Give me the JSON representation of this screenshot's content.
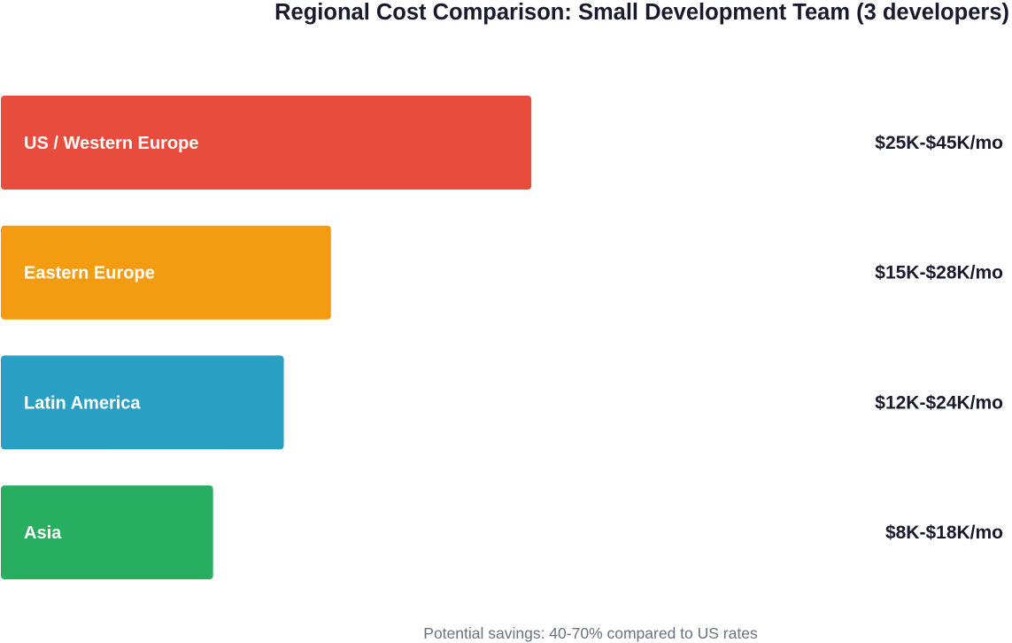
{
  "chart_data": {
    "type": "bar",
    "orientation": "horizontal",
    "title": "Regional Cost Comparison: Small Development Team (3 developers)",
    "xlabel": "",
    "ylabel": "",
    "xlim": [
      0,
      70
    ],
    "grid": false,
    "legend": "none",
    "unit": "$K per month",
    "categories": [
      "US / Western Europe",
      "Eastern Europe",
      "Latin America",
      "Asia"
    ],
    "values": [
      45,
      28,
      24,
      18
    ],
    "ranges": [
      [
        25,
        45
      ],
      [
        15,
        28
      ],
      [
        12,
        24
      ],
      [
        8,
        18
      ]
    ],
    "value_labels": [
      "$25K-$45K/mo",
      "$15K-$28K/mo",
      "$12K-$24K/mo",
      "$8K-$18K/mo"
    ],
    "colors": [
      "#e74c3c",
      "#f39c12",
      "#2a9fc4",
      "#27ae60"
    ],
    "footnote": "Potential savings: 40-70% compared to US rates"
  }
}
